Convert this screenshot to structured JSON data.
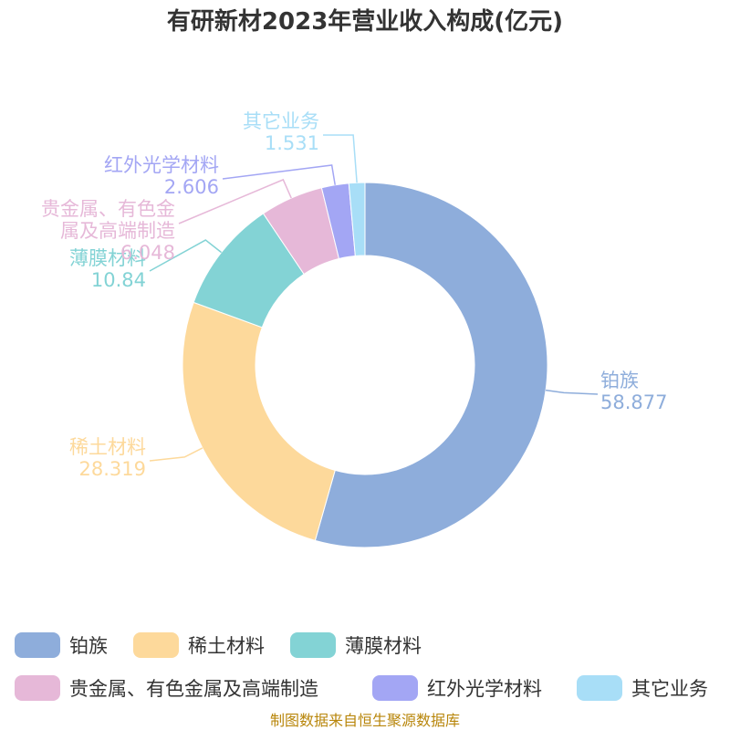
{
  "title": "有研新材2023年营业收入构成(亿元)",
  "source": "制图数据来自恒生聚源数据库",
  "chart_data": {
    "type": "pie",
    "donut": true,
    "title": "有研新材2023年营业收入构成(亿元)",
    "legend_position": "bottom",
    "categories": [
      "铂族",
      "稀土材料",
      "薄膜材料",
      "贵金属、有色金属及高端制造",
      "红外光学材料",
      "其它业务"
    ],
    "values": [
      58.877,
      28.319,
      10.84,
      6.048,
      2.606,
      1.531
    ],
    "value_labels": [
      "58.877",
      "28.319",
      "10.84",
      "6.048",
      "2.606",
      "1.531"
    ],
    "label_lines": [
      [
        "铂族"
      ],
      [
        "稀土材料"
      ],
      [
        "薄膜材料"
      ],
      [
        "贵金属、有色金",
        "属及高端制造"
      ],
      [
        "红外光学材料"
      ],
      [
        "其它业务"
      ]
    ],
    "colors": [
      "#8eaddb",
      "#fdd99b",
      "#83d3d5",
      "#e6b8d8",
      "#a3a6f4",
      "#a8def7"
    ]
  }
}
